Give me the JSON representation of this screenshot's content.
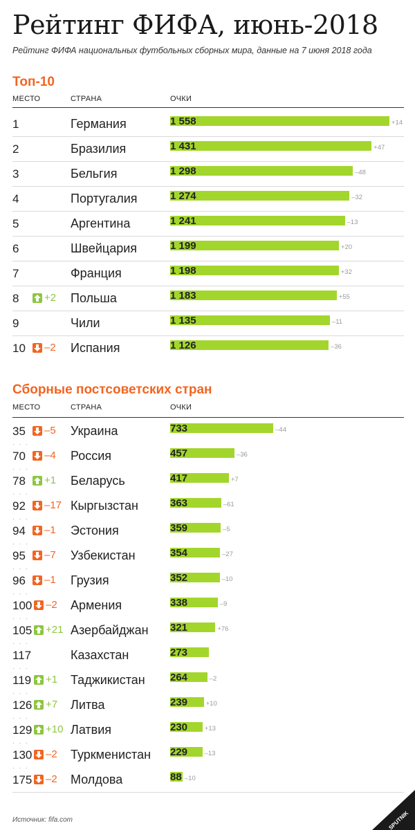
{
  "title": "Рейтинг ФИФА, июнь-2018",
  "subtitle": "Рейтинг ФИФА национальных футбольных сборных мира, данные на 7 июня 2018 года",
  "source": "Источник: fifa.com",
  "logo_text": "SPUTNIK",
  "colors": {
    "accent": "#f26522",
    "bar": "#a3d62c",
    "up": "#8dc63f",
    "down": "#f26522"
  },
  "chart_data": [
    {
      "type": "bar",
      "title": "Топ-10",
      "columns": {
        "rank": "МЕСТО",
        "country": "СТРАНА",
        "points": "ОЧКИ"
      },
      "rows": [
        {
          "rank": "1",
          "change": "",
          "dir": "",
          "country": "Германия",
          "points": 1558,
          "points_label": "1 558",
          "delta": "+14"
        },
        {
          "rank": "2",
          "change": "",
          "dir": "",
          "country": "Бразилия",
          "points": 1431,
          "points_label": "1 431",
          "delta": "+47"
        },
        {
          "rank": "3",
          "change": "",
          "dir": "",
          "country": "Бельгия",
          "points": 1298,
          "points_label": "1 298",
          "delta": "–48"
        },
        {
          "rank": "4",
          "change": "",
          "dir": "",
          "country": "Португалия",
          "points": 1274,
          "points_label": "1 274",
          "delta": "–32"
        },
        {
          "rank": "5",
          "change": "",
          "dir": "",
          "country": "Аргентина",
          "points": 1241,
          "points_label": "1 241",
          "delta": "–13"
        },
        {
          "rank": "6",
          "change": "",
          "dir": "",
          "country": "Швейцария",
          "points": 1199,
          "points_label": "1 199",
          "delta": "+20"
        },
        {
          "rank": "7",
          "change": "",
          "dir": "",
          "country": "Франция",
          "points": 1198,
          "points_label": "1 198",
          "delta": "+32"
        },
        {
          "rank": "8",
          "change": "+2",
          "dir": "up",
          "country": "Польша",
          "points": 1183,
          "points_label": "1 183",
          "delta": "+55"
        },
        {
          "rank": "9",
          "change": "",
          "dir": "",
          "country": "Чили",
          "points": 1135,
          "points_label": "1 135",
          "delta": "–11"
        },
        {
          "rank": "10",
          "change": "–2",
          "dir": "down",
          "country": "Испания",
          "points": 1126,
          "points_label": "1 126",
          "delta": "–36"
        }
      ]
    },
    {
      "type": "bar",
      "title": "Сборные постсоветских стран",
      "columns": {
        "rank": "МЕСТО",
        "country": "СТРАНА",
        "points": "ОЧКИ"
      },
      "rows": [
        {
          "rank": "35",
          "change": "–5",
          "dir": "down",
          "country": "Украина",
          "points": 733,
          "points_label": "733",
          "delta": "–44"
        },
        {
          "rank": "70",
          "change": "–4",
          "dir": "down",
          "country": "Россия",
          "points": 457,
          "points_label": "457",
          "delta": "–36"
        },
        {
          "rank": "78",
          "change": "+1",
          "dir": "up",
          "country": "Беларусь",
          "points": 417,
          "points_label": "417",
          "delta": "+7"
        },
        {
          "rank": "92",
          "change": "–17",
          "dir": "down",
          "country": "Кыргызстан",
          "points": 363,
          "points_label": "363",
          "delta": "–61"
        },
        {
          "rank": "94",
          "change": "–1",
          "dir": "down",
          "country": "Эстония",
          "points": 359,
          "points_label": "359",
          "delta": "–5"
        },
        {
          "rank": "95",
          "change": "–7",
          "dir": "down",
          "country": "Узбекистан",
          "points": 354,
          "points_label": "354",
          "delta": "–27"
        },
        {
          "rank": "96",
          "change": "–1",
          "dir": "down",
          "country": "Грузия",
          "points": 352,
          "points_label": "352",
          "delta": "–10"
        },
        {
          "rank": "100",
          "change": "–2",
          "dir": "down",
          "country": "Армения",
          "points": 338,
          "points_label": "338",
          "delta": "–9"
        },
        {
          "rank": "105",
          "change": "+21",
          "dir": "up",
          "country": "Азербайджан",
          "points": 321,
          "points_label": "321",
          "delta": "+76"
        },
        {
          "rank": "117",
          "change": "",
          "dir": "",
          "country": "Казахстан",
          "points": 273,
          "points_label": "273",
          "delta": ""
        },
        {
          "rank": "119",
          "change": "+1",
          "dir": "up",
          "country": "Таджикистан",
          "points": 264,
          "points_label": "264",
          "delta": "–2"
        },
        {
          "rank": "126",
          "change": "+7",
          "dir": "up",
          "country": "Литва",
          "points": 239,
          "points_label": "239",
          "delta": "+10"
        },
        {
          "rank": "129",
          "change": "+10",
          "dir": "up",
          "country": "Латвия",
          "points": 230,
          "points_label": "230",
          "delta": "+13"
        },
        {
          "rank": "130",
          "change": "–2",
          "dir": "down",
          "country": "Туркменистан",
          "points": 229,
          "points_label": "229",
          "delta": "–13"
        },
        {
          "rank": "175",
          "change": "–2",
          "dir": "down",
          "country": "Молдова",
          "points": 88,
          "points_label": "88",
          "delta": "–10"
        }
      ]
    }
  ]
}
